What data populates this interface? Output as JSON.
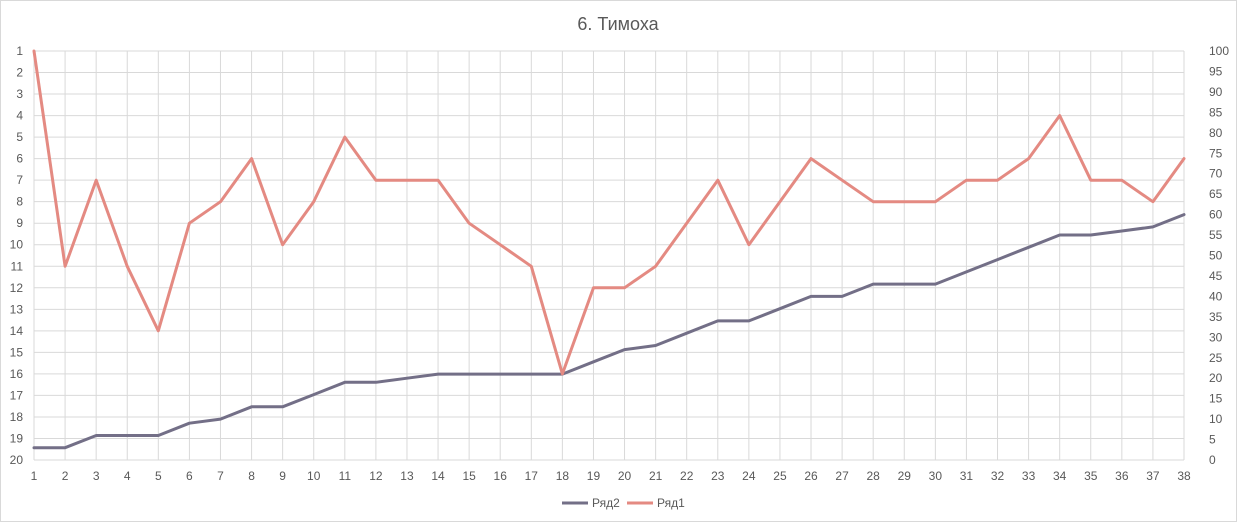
{
  "chart_data": {
    "type": "line",
    "title": "6. Тимоха",
    "grid": true,
    "legend_position": "bottom",
    "x": [
      1,
      2,
      3,
      4,
      5,
      6,
      7,
      8,
      9,
      10,
      11,
      12,
      13,
      14,
      15,
      16,
      17,
      18,
      19,
      20,
      21,
      22,
      23,
      24,
      25,
      26,
      27,
      28,
      29,
      30,
      31,
      32,
      33,
      34,
      35,
      36,
      37,
      38
    ],
    "y_left": {
      "min": 1,
      "max": 20,
      "ticks": [
        1,
        2,
        3,
        4,
        5,
        6,
        7,
        8,
        9,
        10,
        11,
        12,
        13,
        14,
        15,
        16,
        17,
        18,
        19,
        20
      ],
      "reversed": true
    },
    "y_right": {
      "min": 0,
      "max": 100,
      "ticks": [
        0,
        5,
        10,
        15,
        20,
        25,
        30,
        35,
        40,
        45,
        50,
        55,
        60,
        65,
        70,
        75,
        80,
        85,
        90,
        95,
        100
      ]
    },
    "series": [
      {
        "name": "Ряд2",
        "color": "#736f87",
        "axis": "right",
        "values": [
          3,
          3,
          6,
          6,
          6,
          9,
          10,
          13,
          13,
          16,
          19,
          19,
          20,
          21,
          21,
          21,
          21,
          21,
          24,
          27,
          28,
          31,
          34,
          34,
          37,
          40,
          40,
          43,
          43,
          43,
          46,
          49,
          52,
          55,
          55,
          56,
          57,
          60
        ]
      },
      {
        "name": "Ряд1",
        "color": "#e48a82",
        "axis": "left",
        "values": [
          1,
          11,
          7,
          11,
          14,
          9,
          8,
          6,
          10,
          8,
          5,
          7,
          7,
          7,
          9,
          10,
          11,
          16,
          12,
          12,
          11,
          9,
          7,
          10,
          8,
          6,
          7,
          8,
          8,
          8,
          7,
          7,
          6,
          4,
          7,
          7,
          8,
          6
        ]
      }
    ]
  }
}
